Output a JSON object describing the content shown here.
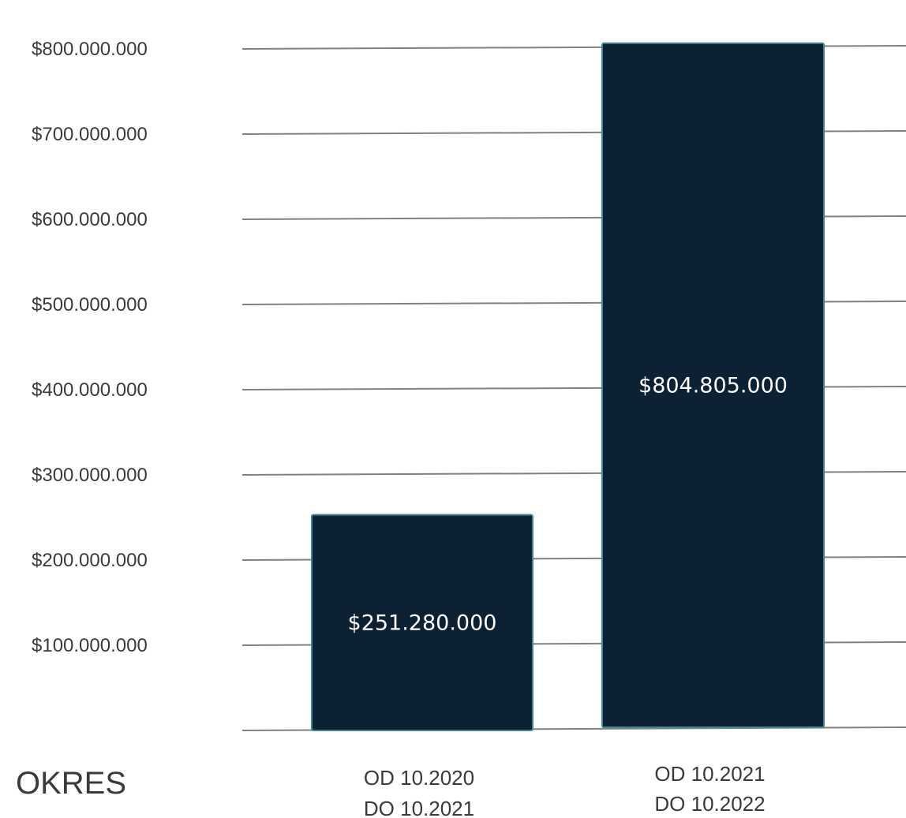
{
  "chart_data": {
    "type": "bar",
    "categories": [
      [
        "OD 10.2020",
        "DO 10.2021"
      ],
      [
        "OD 10.2021",
        "DO 10.2022"
      ]
    ],
    "values": [
      251280000,
      804805000
    ],
    "data_labels": [
      "$251.280.000",
      "$804.805.000"
    ],
    "y_ticks": [
      {
        "value": 100000000,
        "label": "$100.000.000"
      },
      {
        "value": 200000000,
        "label": "$200.000.000"
      },
      {
        "value": 300000000,
        "label": "$300.000.000"
      },
      {
        "value": 400000000,
        "label": "$400.000.000"
      },
      {
        "value": 500000000,
        "label": "$500.000.000"
      },
      {
        "value": 600000000,
        "label": "$600.000.000"
      },
      {
        "value": 700000000,
        "label": "$700.000.000"
      },
      {
        "value": 800000000,
        "label": "$800.000.000"
      }
    ],
    "period_label": "OKRES",
    "ylim": [
      0,
      800000000
    ],
    "grid": true,
    "colors": {
      "bar_fill": "#0d2135",
      "bar_stroke": "#3f8a91",
      "gridline": "#808080",
      "label_text": "#3a3a3a",
      "data_label_text": "#ffffff"
    }
  }
}
